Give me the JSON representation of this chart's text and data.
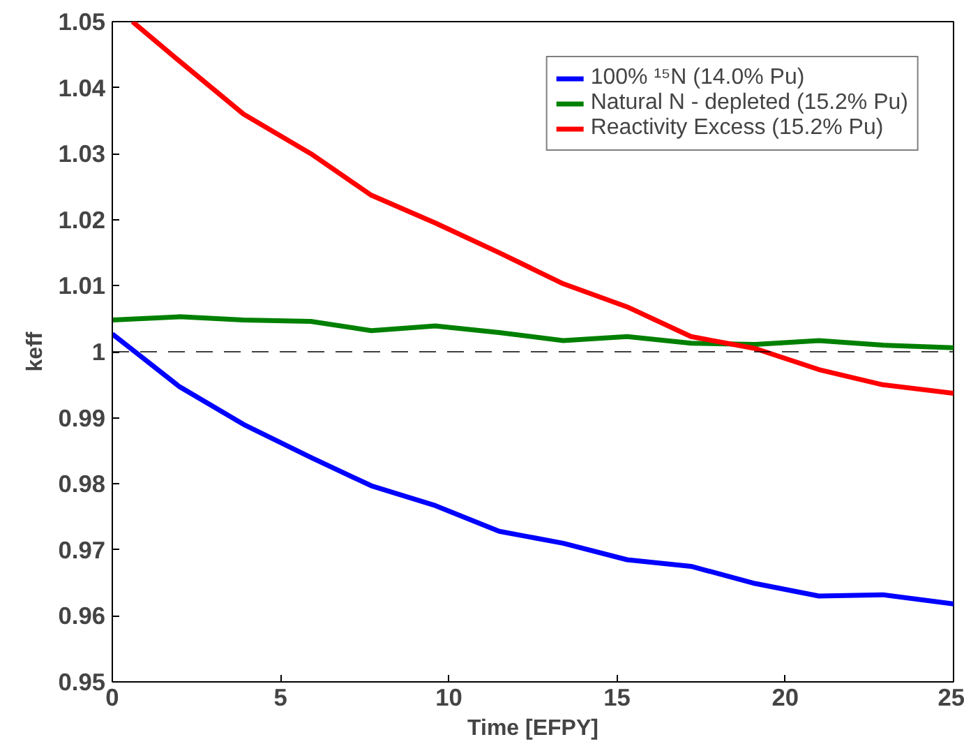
{
  "chart_data": {
    "type": "line",
    "xlabel": "Time [EFPY]",
    "ylabel": "keff",
    "xlim": [
      0,
      25
    ],
    "ylim": [
      0.95,
      1.05
    ],
    "xticks": [
      0,
      5,
      10,
      15,
      20,
      25
    ],
    "yticks": [
      0.95,
      0.96,
      0.97,
      0.98,
      0.99,
      1,
      1.01,
      1.02,
      1.03,
      1.04,
      1.05
    ],
    "grid": false,
    "legend": "top right",
    "line_style": "solid",
    "marker": "none",
    "ref_lines": [
      {
        "axis": "y",
        "value": 1,
        "color": "#000000",
        "line_style": "dashed"
      }
    ],
    "series": [
      {
        "name": "100% ¹⁵N (14.0% Pu)",
        "color": "#0000ff",
        "x": [
          0,
          2.0,
          3.9,
          5.9,
          7.7,
          9.6,
          11.5,
          13.4,
          15.3,
          17.2,
          19.1,
          21.0,
          22.9,
          25
        ],
        "values": [
          1.0027,
          0.9947,
          0.989,
          0.984,
          0.9797,
          0.9767,
          0.9728,
          0.971,
          0.9685,
          0.9675,
          0.9649,
          0.963,
          0.9632,
          0.9618
        ]
      },
      {
        "name": "Natural N - depleted (15.2% Pu)",
        "color": "#008000",
        "x": [
          0,
          2.0,
          3.9,
          5.9,
          7.7,
          9.6,
          11.5,
          13.4,
          15.3,
          17.2,
          19.1,
          21.0,
          22.9,
          25
        ],
        "values": [
          1.0048,
          1.0053,
          1.0048,
          1.0046,
          1.0032,
          1.0039,
          1.0029,
          1.0017,
          1.0023,
          1.0013,
          1.0011,
          1.0017,
          1.001,
          1.0006
        ]
      },
      {
        "name": "Reactivity Excess (15.2% Pu)",
        "color": "#ff0000",
        "x": [
          0.6,
          2.0,
          3.9,
          5.9,
          7.7,
          9.6,
          11.5,
          13.4,
          15.3,
          17.2,
          19.1,
          21.0,
          22.9,
          25
        ],
        "values": [
          1.05,
          1.044,
          1.036,
          1.03,
          1.0237,
          1.0195,
          1.015,
          1.0103,
          1.0068,
          1.0023,
          1.0005,
          0.9973,
          0.995,
          0.9937
        ]
      }
    ]
  }
}
